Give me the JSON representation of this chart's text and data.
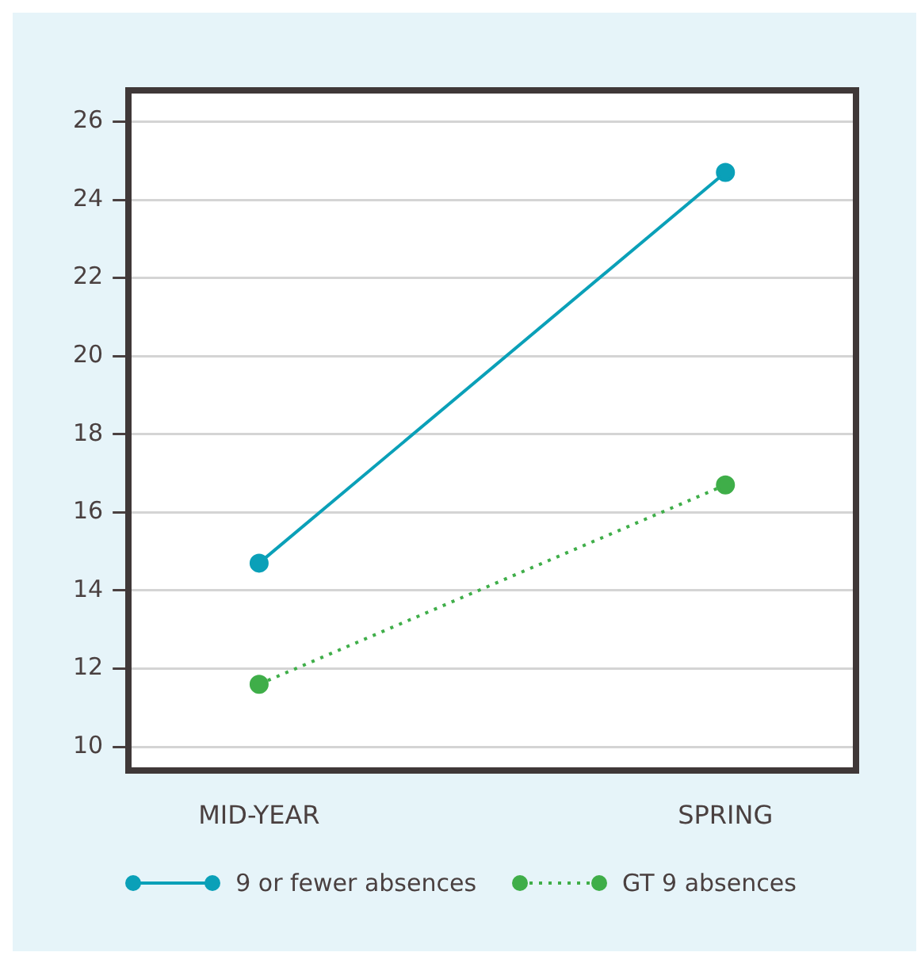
{
  "chart_data": {
    "type": "line",
    "categories": [
      "MID-YEAR",
      "SPRING"
    ],
    "series": [
      {
        "name": "9 or fewer absences",
        "color": "#0aa0b8",
        "values": [
          14.7,
          24.7
        ],
        "line_style": "solid"
      },
      {
        "name": "GT 9 absences",
        "color": "#3fae49",
        "values": [
          11.6,
          16.7
        ],
        "line_style": "dotted"
      }
    ],
    "ylim": [
      9.4,
      26.8
    ],
    "yticks": [
      10,
      12,
      14,
      16,
      18,
      20,
      22,
      24,
      26
    ],
    "grid": "y",
    "legend": "bottom",
    "marker": "circle"
  }
}
